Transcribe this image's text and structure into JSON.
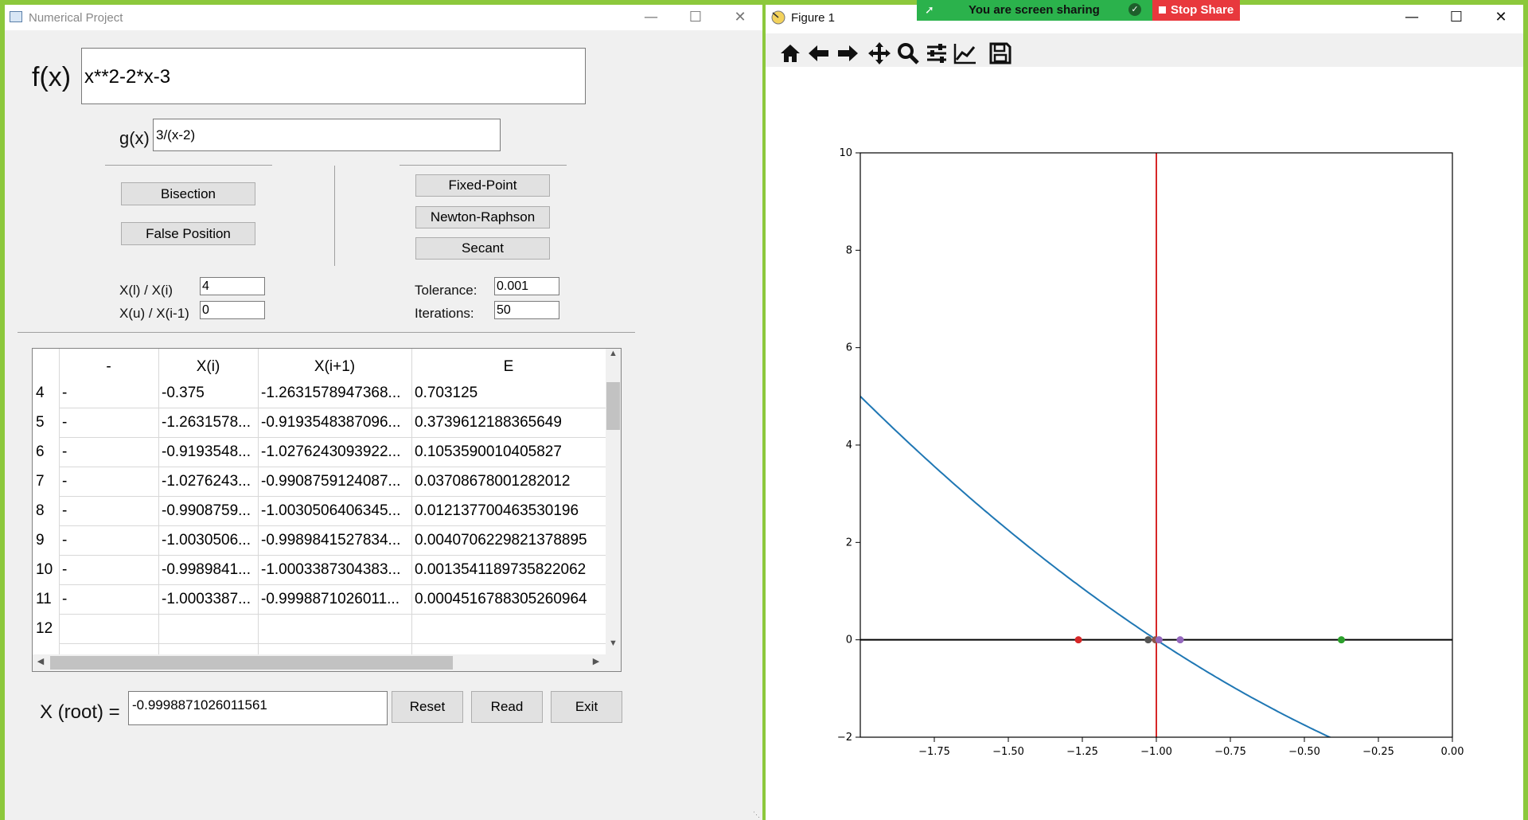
{
  "left_window": {
    "title": "Numerical Project",
    "fx_label": "f(x)",
    "fx_value": "x**2-2*x-3",
    "gx_label": "g(x)",
    "gx_value": "3/(x-2)",
    "buttons": {
      "bisection": "Bisection",
      "false_position": "False Position",
      "fixed_point": "Fixed-Point",
      "newton": "Newton-Raphson",
      "secant": "Secant",
      "reset": "Reset",
      "read": "Read",
      "exit": "Exit"
    },
    "xl_label": "X(l)  / X(i)",
    "xl_value": "4",
    "xu_label": "X(u) / X(i-1)",
    "xu_value": "0",
    "tol_label": "Tolerance:",
    "tol_value": "0.001",
    "iter_label": "Iterations:",
    "iter_value": "50",
    "root_label": "X (root) =",
    "root_value": "-0.9998871026011561",
    "table": {
      "headers": [
        "-",
        "X(i)",
        "X(i+1)",
        "E"
      ],
      "rows": [
        {
          "n": "4",
          "c0": "-",
          "c1": "-0.375",
          "c2": "-1.2631578947368...",
          "c3": "0.703125"
        },
        {
          "n": "5",
          "c0": "-",
          "c1": "-1.2631578...",
          "c2": "-0.9193548387096...",
          "c3": "0.3739612188365649"
        },
        {
          "n": "6",
          "c0": "-",
          "c1": "-0.9193548...",
          "c2": "-1.0276243093922...",
          "c3": "0.1053590010405827"
        },
        {
          "n": "7",
          "c0": "-",
          "c1": "-1.0276243...",
          "c2": "-0.9908759124087...",
          "c3": "0.03708678001282012"
        },
        {
          "n": "8",
          "c0": "-",
          "c1": "-0.9908759...",
          "c2": "-1.0030506406345...",
          "c3": "0.012137700463530196"
        },
        {
          "n": "9",
          "c0": "-",
          "c1": "-1.0030506...",
          "c2": "-0.9989841527834...",
          "c3": "0.0040706229821378895"
        },
        {
          "n": "10",
          "c0": "-",
          "c1": "-0.9989841...",
          "c2": "-1.0003387304383...",
          "c3": "0.0013541189735822062"
        },
        {
          "n": "11",
          "c0": "-",
          "c1": "-1.0003387...",
          "c2": "-0.9998871026011...",
          "c3": "0.0004516788305260964"
        },
        {
          "n": "12",
          "c0": "",
          "c1": "",
          "c2": "",
          "c3": ""
        }
      ]
    }
  },
  "right_window": {
    "title": "Figure 1",
    "share_text": "You are screen sharing",
    "stop_share": "Stop Share",
    "toolbar_icons": [
      "home-icon",
      "back-arrow-icon",
      "forward-arrow-icon",
      "pan-icon",
      "zoom-icon",
      "configure-subplots-icon",
      "edit-axis-icon",
      "save-icon"
    ]
  },
  "chart_data": {
    "type": "line",
    "title": "",
    "xlabel": "",
    "ylabel": "",
    "xlim": [
      -2.0,
      0.0
    ],
    "ylim": [
      -2,
      10
    ],
    "xticks": [
      "-1.75",
      "-1.50",
      "-1.25",
      "-1.00",
      "-0.75",
      "-0.50",
      "-0.25",
      "0.00"
    ],
    "yticks": [
      "-2",
      "0",
      "2",
      "4",
      "6",
      "8",
      "10"
    ],
    "series": [
      {
        "function": "x**2-2*x-3",
        "color": "#1f77b4",
        "x_range": [
          -2.0,
          0.0
        ]
      }
    ],
    "hline_y": 0,
    "vline_x": -1.0,
    "vline_color": "#d62728",
    "points": [
      {
        "x": -1.2632,
        "y": 0,
        "color": "#d62728"
      },
      {
        "x": -1.0276,
        "y": 0,
        "color": "#555555"
      },
      {
        "x": -1.0031,
        "y": 0,
        "color": "#8c564b"
      },
      {
        "x": -0.9909,
        "y": 0,
        "color": "#9467bd"
      },
      {
        "x": -0.9194,
        "y": 0,
        "color": "#9467bd"
      },
      {
        "x": -0.375,
        "y": 0,
        "color": "#2ca02c"
      }
    ]
  }
}
